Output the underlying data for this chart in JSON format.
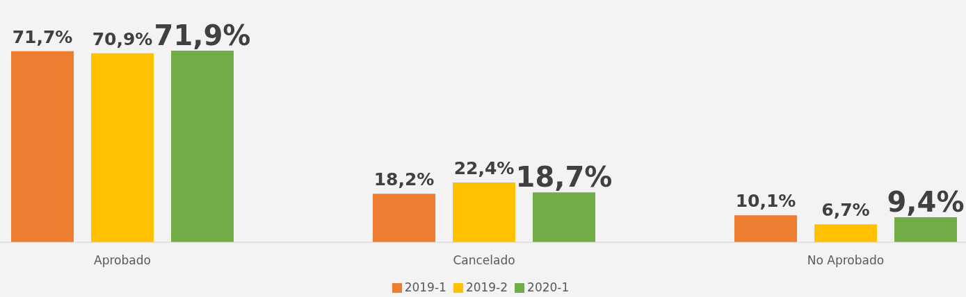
{
  "chart_data": {
    "type": "bar",
    "categories": [
      "Aprobado",
      "Cancelado",
      "No Aprobado"
    ],
    "series": [
      {
        "name": "2019-1",
        "color": "#ed7d31",
        "values": [
          71.7,
          18.2,
          10.1
        ],
        "value_labels": [
          "71,7%",
          "18,2%",
          "10,1%"
        ]
      },
      {
        "name": "2019-2",
        "color": "#ffc000",
        "values": [
          70.9,
          22.4,
          6.7
        ],
        "value_labels": [
          "70,9%",
          "22,4%",
          "6,7%"
        ]
      },
      {
        "name": "2020-1",
        "color": "#70ad47",
        "values": [
          71.9,
          18.7,
          9.4
        ],
        "value_labels": [
          "71,9%",
          "18,7%",
          "9,4%"
        ]
      }
    ],
    "legend": "bottom",
    "grid": false
  }
}
